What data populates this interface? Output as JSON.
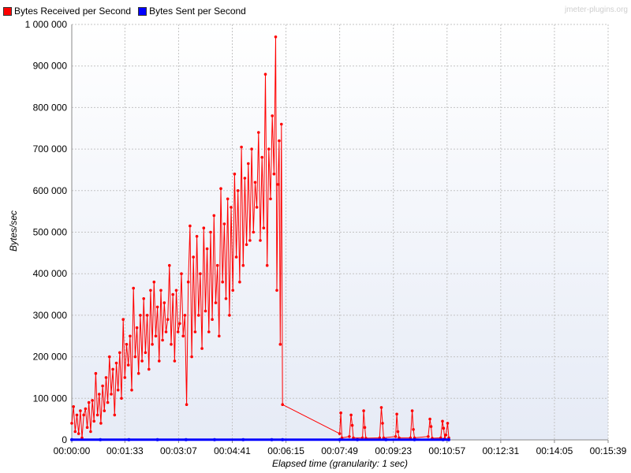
{
  "watermark": "jmeter-plugins.org",
  "chart_data": {
    "type": "line",
    "title": "",
    "xlabel": "Elapsed time (granularity: 1 sec)",
    "ylabel": "Bytes/sec",
    "xlim_seconds": [
      0,
      939
    ],
    "ylim": [
      0,
      1000000
    ],
    "x_ticks": [
      {
        "label": "00:00:00",
        "seconds": 0
      },
      {
        "label": "00:01:33",
        "seconds": 93
      },
      {
        "label": "00:03:07",
        "seconds": 187
      },
      {
        "label": "00:04:41",
        "seconds": 281
      },
      {
        "label": "00:06:15",
        "seconds": 375
      },
      {
        "label": "00:07:49",
        "seconds": 469
      },
      {
        "label": "00:09:23",
        "seconds": 563
      },
      {
        "label": "00:10:57",
        "seconds": 657
      },
      {
        "label": "00:12:31",
        "seconds": 751
      },
      {
        "label": "00:14:05",
        "seconds": 845
      },
      {
        "label": "00:15:39",
        "seconds": 939
      }
    ],
    "y_ticks": [
      {
        "label": "0",
        "value": 0
      },
      {
        "label": "100 000",
        "value": 100000
      },
      {
        "label": "200 000",
        "value": 200000
      },
      {
        "label": "300 000",
        "value": 300000
      },
      {
        "label": "400 000",
        "value": 400000
      },
      {
        "label": "500 000",
        "value": 500000
      },
      {
        "label": "600 000",
        "value": 600000
      },
      {
        "label": "700 000",
        "value": 700000
      },
      {
        "label": "800 000",
        "value": 800000
      },
      {
        "label": "900 000",
        "value": 900000
      },
      {
        "label": "1 000 000",
        "value": 1000000
      }
    ],
    "grid": true,
    "legend_position": "top-left",
    "series": [
      {
        "name": "Bytes Received per Second",
        "color": "#ff0000",
        "points": [
          [
            0,
            40000
          ],
          [
            3,
            80000
          ],
          [
            6,
            20000
          ],
          [
            9,
            60000
          ],
          [
            12,
            15000
          ],
          [
            15,
            70000
          ],
          [
            18,
            5000
          ],
          [
            21,
            60000
          ],
          [
            24,
            75000
          ],
          [
            27,
            30000
          ],
          [
            30,
            90000
          ],
          [
            33,
            20000
          ],
          [
            36,
            95000
          ],
          [
            39,
            45000
          ],
          [
            42,
            160000
          ],
          [
            45,
            60000
          ],
          [
            48,
            110000
          ],
          [
            51,
            40000
          ],
          [
            54,
            130000
          ],
          [
            57,
            70000
          ],
          [
            60,
            150000
          ],
          [
            63,
            90000
          ],
          [
            66,
            200000
          ],
          [
            69,
            110000
          ],
          [
            72,
            170000
          ],
          [
            75,
            60000
          ],
          [
            78,
            185000
          ],
          [
            81,
            120000
          ],
          [
            84,
            210000
          ],
          [
            87,
            100000
          ],
          [
            90,
            290000
          ],
          [
            93,
            150000
          ],
          [
            96,
            230000
          ],
          [
            99,
            180000
          ],
          [
            102,
            250000
          ],
          [
            105,
            120000
          ],
          [
            108,
            365000
          ],
          [
            111,
            200000
          ],
          [
            114,
            270000
          ],
          [
            117,
            160000
          ],
          [
            120,
            300000
          ],
          [
            123,
            190000
          ],
          [
            126,
            340000
          ],
          [
            129,
            210000
          ],
          [
            132,
            300000
          ],
          [
            135,
            170000
          ],
          [
            138,
            360000
          ],
          [
            141,
            230000
          ],
          [
            144,
            380000
          ],
          [
            147,
            250000
          ],
          [
            150,
            320000
          ],
          [
            153,
            190000
          ],
          [
            156,
            360000
          ],
          [
            159,
            240000
          ],
          [
            162,
            330000
          ],
          [
            165,
            260000
          ],
          [
            168,
            290000
          ],
          [
            171,
            420000
          ],
          [
            174,
            230000
          ],
          [
            177,
            350000
          ],
          [
            180,
            190000
          ],
          [
            183,
            360000
          ],
          [
            186,
            260000
          ],
          [
            189,
            280000
          ],
          [
            192,
            400000
          ],
          [
            195,
            250000
          ],
          [
            198,
            300000
          ],
          [
            201,
            85000
          ],
          [
            204,
            380000
          ],
          [
            207,
            515000
          ],
          [
            210,
            200000
          ],
          [
            213,
            440000
          ],
          [
            216,
            260000
          ],
          [
            219,
            490000
          ],
          [
            222,
            300000
          ],
          [
            225,
            400000
          ],
          [
            228,
            220000
          ],
          [
            231,
            510000
          ],
          [
            234,
            310000
          ],
          [
            237,
            460000
          ],
          [
            240,
            260000
          ],
          [
            243,
            500000
          ],
          [
            246,
            290000
          ],
          [
            249,
            540000
          ],
          [
            252,
            330000
          ],
          [
            255,
            420000
          ],
          [
            258,
            250000
          ],
          [
            261,
            605000
          ],
          [
            264,
            380000
          ],
          [
            267,
            520000
          ],
          [
            270,
            340000
          ],
          [
            273,
            580000
          ],
          [
            276,
            300000
          ],
          [
            279,
            560000
          ],
          [
            282,
            360000
          ],
          [
            285,
            640000
          ],
          [
            288,
            440000
          ],
          [
            291,
            600000
          ],
          [
            294,
            380000
          ],
          [
            297,
            705000
          ],
          [
            300,
            420000
          ],
          [
            303,
            630000
          ],
          [
            306,
            470000
          ],
          [
            309,
            665000
          ],
          [
            312,
            480000
          ],
          [
            315,
            700000
          ],
          [
            318,
            500000
          ],
          [
            321,
            620000
          ],
          [
            324,
            560000
          ],
          [
            327,
            740000
          ],
          [
            330,
            480000
          ],
          [
            333,
            680000
          ],
          [
            336,
            510000
          ],
          [
            339,
            880000
          ],
          [
            342,
            420000
          ],
          [
            345,
            700000
          ],
          [
            348,
            580000
          ],
          [
            351,
            780000
          ],
          [
            354,
            640000
          ],
          [
            357,
            970000
          ],
          [
            359,
            360000
          ],
          [
            361,
            615000
          ],
          [
            363,
            720000
          ],
          [
            365,
            230000
          ],
          [
            367,
            760000
          ],
          [
            369,
            85000
          ],
          [
            469,
            15000
          ],
          [
            471,
            65000
          ],
          [
            473,
            5000
          ],
          [
            486,
            8000
          ],
          [
            489,
            60000
          ],
          [
            491,
            35000
          ],
          [
            493,
            5000
          ],
          [
            509,
            5000
          ],
          [
            511,
            70000
          ],
          [
            513,
            30000
          ],
          [
            515,
            4000
          ],
          [
            539,
            5000
          ],
          [
            542,
            78000
          ],
          [
            544,
            40000
          ],
          [
            546,
            5000
          ],
          [
            567,
            8000
          ],
          [
            569,
            62000
          ],
          [
            571,
            20000
          ],
          [
            573,
            5000
          ],
          [
            593,
            5000
          ],
          [
            596,
            70000
          ],
          [
            598,
            25000
          ],
          [
            600,
            5000
          ],
          [
            624,
            8000
          ],
          [
            627,
            50000
          ],
          [
            629,
            32000
          ],
          [
            631,
            4000
          ],
          [
            646,
            5000
          ],
          [
            649,
            45000
          ],
          [
            651,
            28000
          ],
          [
            653,
            3000
          ],
          [
            655,
            12000
          ],
          [
            658,
            40000
          ],
          [
            660,
            5000
          ]
        ]
      },
      {
        "name": "Bytes Sent per Second",
        "color": "#0000ff",
        "points": [
          [
            0,
            500
          ],
          [
            50,
            500
          ],
          [
            100,
            500
          ],
          [
            150,
            500
          ],
          [
            200,
            500
          ],
          [
            250,
            500
          ],
          [
            300,
            500
          ],
          [
            350,
            500
          ],
          [
            369,
            500
          ],
          [
            469,
            300
          ],
          [
            500,
            300
          ],
          [
            550,
            300
          ],
          [
            600,
            300
          ],
          [
            650,
            300
          ],
          [
            660,
            300
          ]
        ]
      }
    ]
  }
}
